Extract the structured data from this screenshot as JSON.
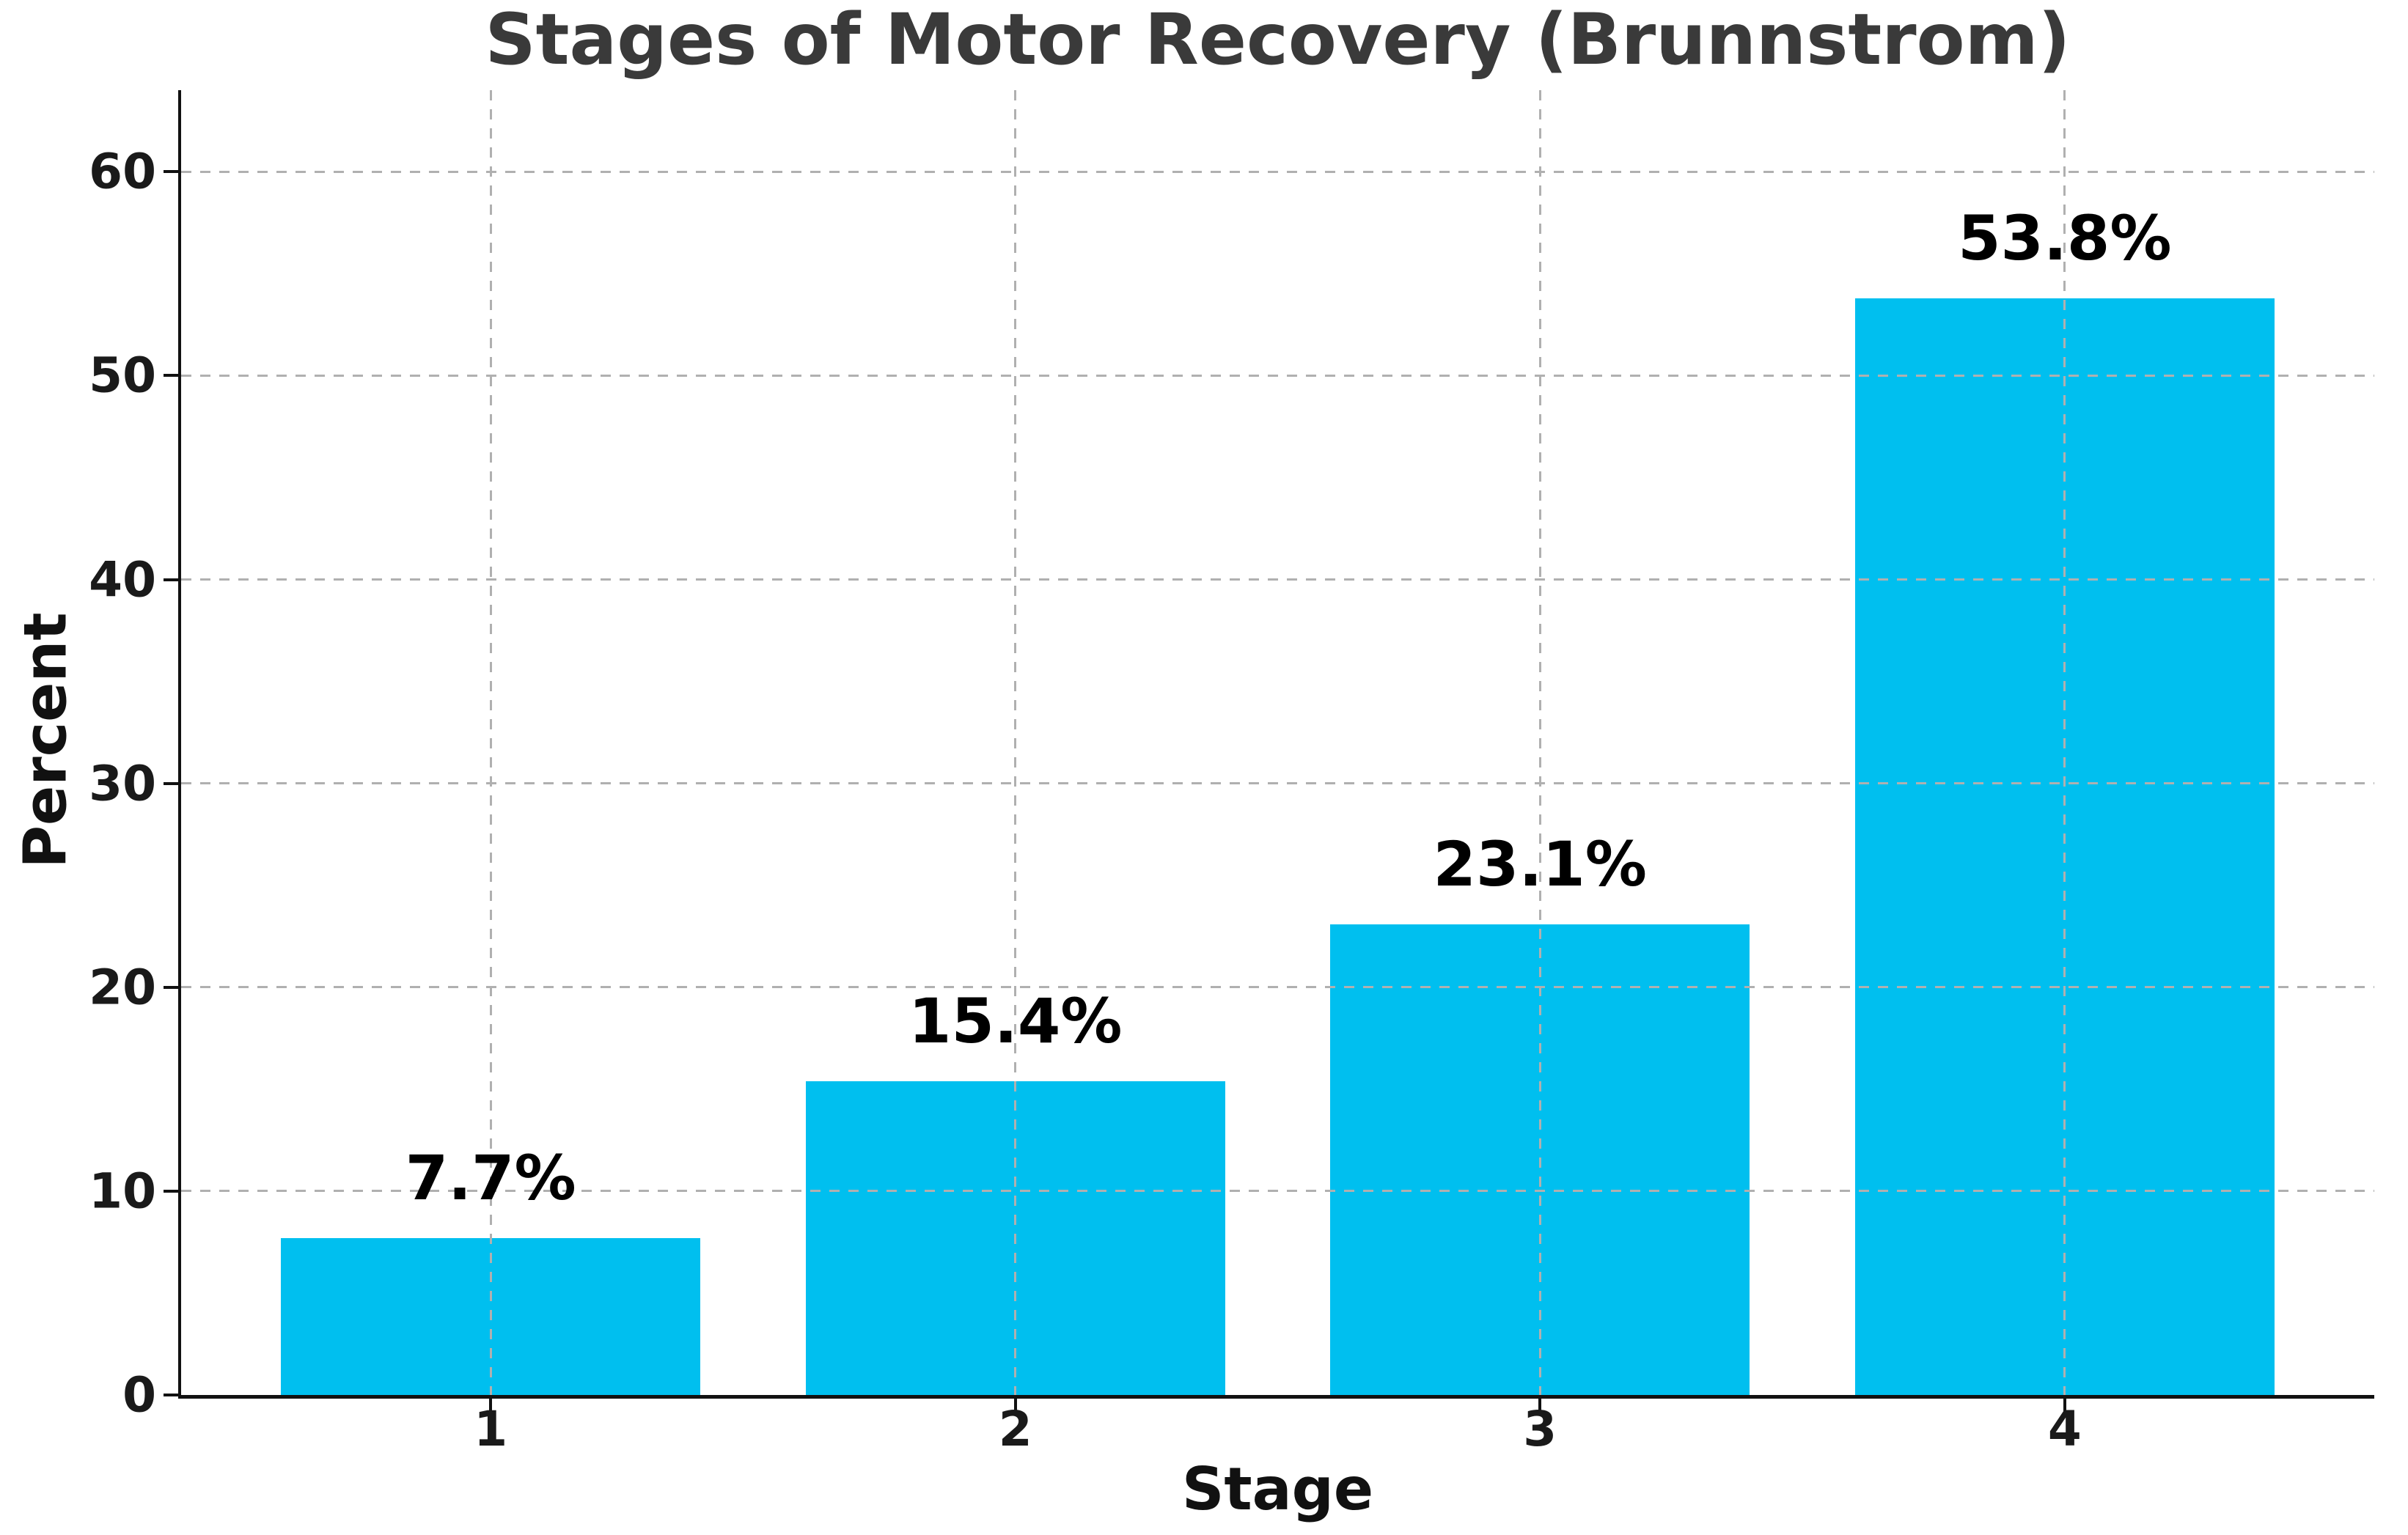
{
  "chart_data": {
    "type": "bar",
    "title": "Stages of Motor Recovery (Brunnstrom)",
    "xlabel": "Stage",
    "ylabel": "Percent",
    "categories": [
      "1",
      "2",
      "3",
      "4"
    ],
    "values": [
      7.7,
      15.4,
      23.1,
      53.8
    ],
    "bar_labels": [
      "7.7%",
      "15.4%",
      "23.1%",
      "53.8%"
    ],
    "ylim": [
      0,
      64
    ],
    "yticks": [
      0,
      10,
      20,
      30,
      40,
      50,
      60
    ],
    "xlim": [
      -0.59,
      3.59
    ],
    "bar_width_units": 0.8,
    "bar_color": "#00BFEF",
    "grid": "dashed gray, horizontal at each ytick and vertical at each bar center, drawn above bars",
    "legend": "none",
    "background_color": "#ffffff"
  }
}
